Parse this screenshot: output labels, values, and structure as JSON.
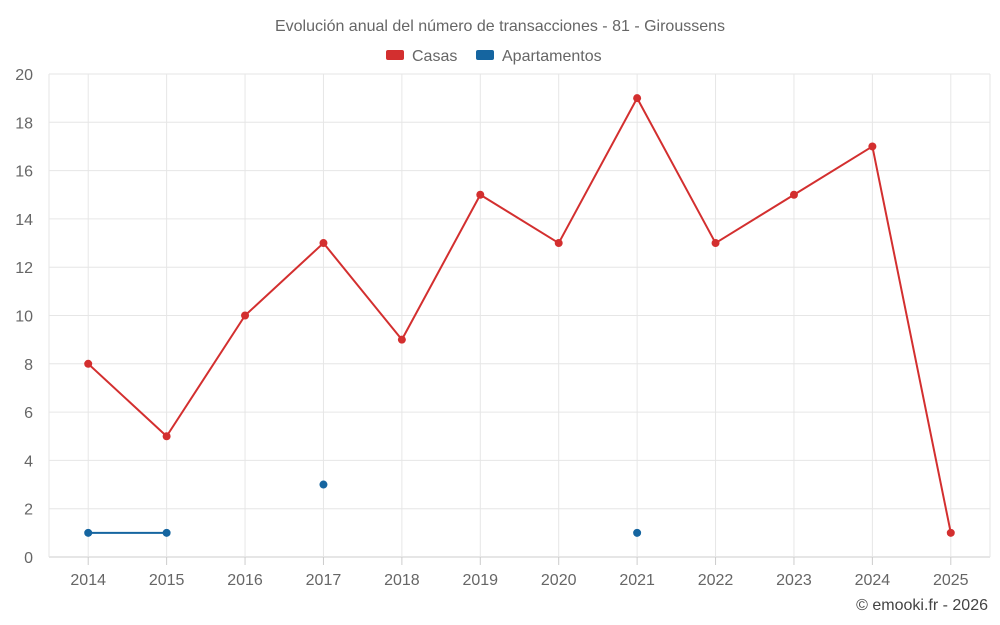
{
  "chart_data": {
    "type": "line",
    "title": "Evolución anual del número de transacciones - 81 - Giroussens",
    "categories": [
      "2014",
      "2015",
      "2016",
      "2017",
      "2018",
      "2019",
      "2020",
      "2021",
      "2022",
      "2023",
      "2024",
      "2025"
    ],
    "series": [
      {
        "name": "Casas",
        "color": "#d32f2f",
        "values": [
          8,
          5,
          10,
          13,
          9,
          15,
          13,
          19,
          13,
          15,
          17,
          1
        ]
      },
      {
        "name": "Apartamentos",
        "color": "#1565a0",
        "values": [
          1,
          1,
          null,
          3,
          null,
          null,
          null,
          1,
          null,
          null,
          null,
          null
        ]
      }
    ],
    "ylim": [
      0,
      20
    ],
    "yticks": [
      0,
      2,
      4,
      6,
      8,
      10,
      12,
      14,
      16,
      18,
      20
    ],
    "xlabel": "",
    "ylabel": "",
    "grid": true,
    "legend_position": "top-center"
  },
  "credit": "© emooki.fr - 2026"
}
